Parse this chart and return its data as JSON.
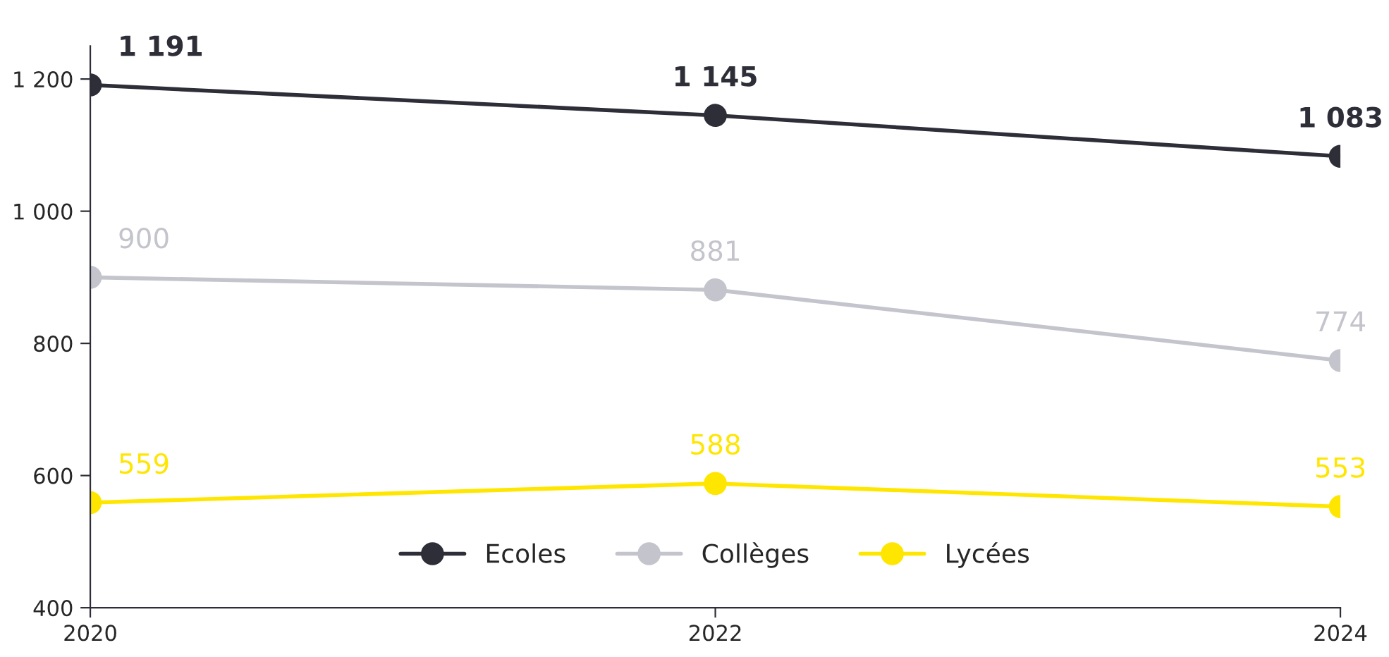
{
  "chart_data": {
    "type": "line",
    "x": [
      2020,
      2022,
      2024
    ],
    "xlim": [
      2020,
      2024
    ],
    "xticks": [
      2020,
      2022,
      2024
    ],
    "ylim": [
      400,
      1250
    ],
    "yticks": [
      400,
      600,
      800,
      {
        "value": 1000,
        "label": "1 000"
      },
      {
        "value": 1200,
        "label": "1 200"
      }
    ],
    "series": [
      {
        "name": "Ecoles",
        "color": "#2e2e38",
        "values": [
          1191,
          1145,
          1083
        ],
        "value_labels": [
          "1 191",
          "1 145",
          "1 083"
        ]
      },
      {
        "name": "Collèges",
        "color": "#c4c4cd",
        "values": [
          900,
          881,
          774
        ],
        "value_labels": [
          "900",
          "881",
          "774"
        ]
      },
      {
        "name": "Lycées",
        "color": "#ffe600",
        "values": [
          559,
          588,
          553
        ],
        "value_labels": [
          "559",
          "588",
          "553"
        ]
      }
    ],
    "marker": "circle",
    "line_style": "solid",
    "grid": false,
    "legend": "bottom"
  }
}
